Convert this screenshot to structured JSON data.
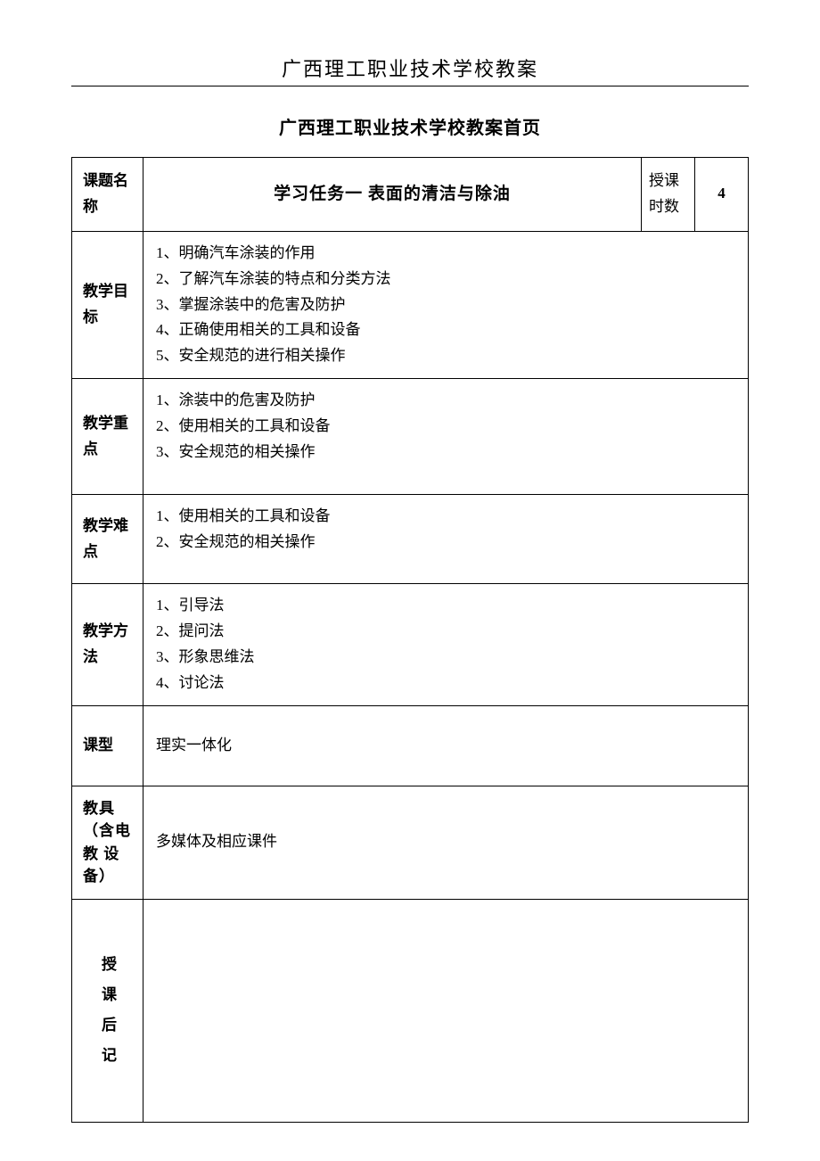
{
  "header": {
    "school_title": "广西理工职业技术学校教案",
    "page_title": "广西理工职业技术学校教案首页"
  },
  "table": {
    "topic": {
      "label": "课题名称",
      "title": "学习任务一  表面的清洁与除油",
      "hours_label": "授课时数",
      "hours_value": "4"
    },
    "goals": {
      "label": "教学目标",
      "items": [
        "1、明确汽车涂装的作用",
        "2、了解汽车涂装的特点和分类方法",
        "3、掌握涂装中的危害及防护",
        "4、正确使用相关的工具和设备",
        "5、安全规范的进行相关操作"
      ]
    },
    "keypoints": {
      "label": "教学重点",
      "items": [
        "1、涂装中的危害及防护",
        "2、使用相关的工具和设备",
        "3、安全规范的相关操作"
      ]
    },
    "difficulties": {
      "label": "教学难点",
      "items": [
        "1、使用相关的工具和设备",
        "2、安全规范的相关操作"
      ]
    },
    "methods": {
      "label": "教学方法",
      "items": [
        "1、引导法",
        "2、提问法",
        "3、形象思维法",
        "4、讨论法"
      ]
    },
    "type": {
      "label": "课型",
      "value": "理实一体化"
    },
    "equipment": {
      "label": "教具（含电教 设备）",
      "value": "多媒体及相应课件"
    },
    "notes": {
      "label": "授课后记",
      "value": ""
    }
  }
}
